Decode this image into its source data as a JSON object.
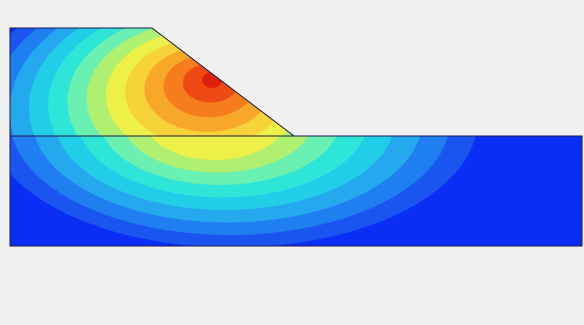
{
  "colors": {
    "background": "#f0f0f0",
    "outline": "#1a1a4a",
    "contour_scale": [
      "#0a2ef5",
      "#1a55f0",
      "#1f7ef0",
      "#24a8ee",
      "#22cde8",
      "#2ee6d8",
      "#6af0b0",
      "#b0f070",
      "#ecf048",
      "#f6d338",
      "#f8a828",
      "#f67c1e",
      "#f04a14",
      "#e0200e"
    ]
  }
}
